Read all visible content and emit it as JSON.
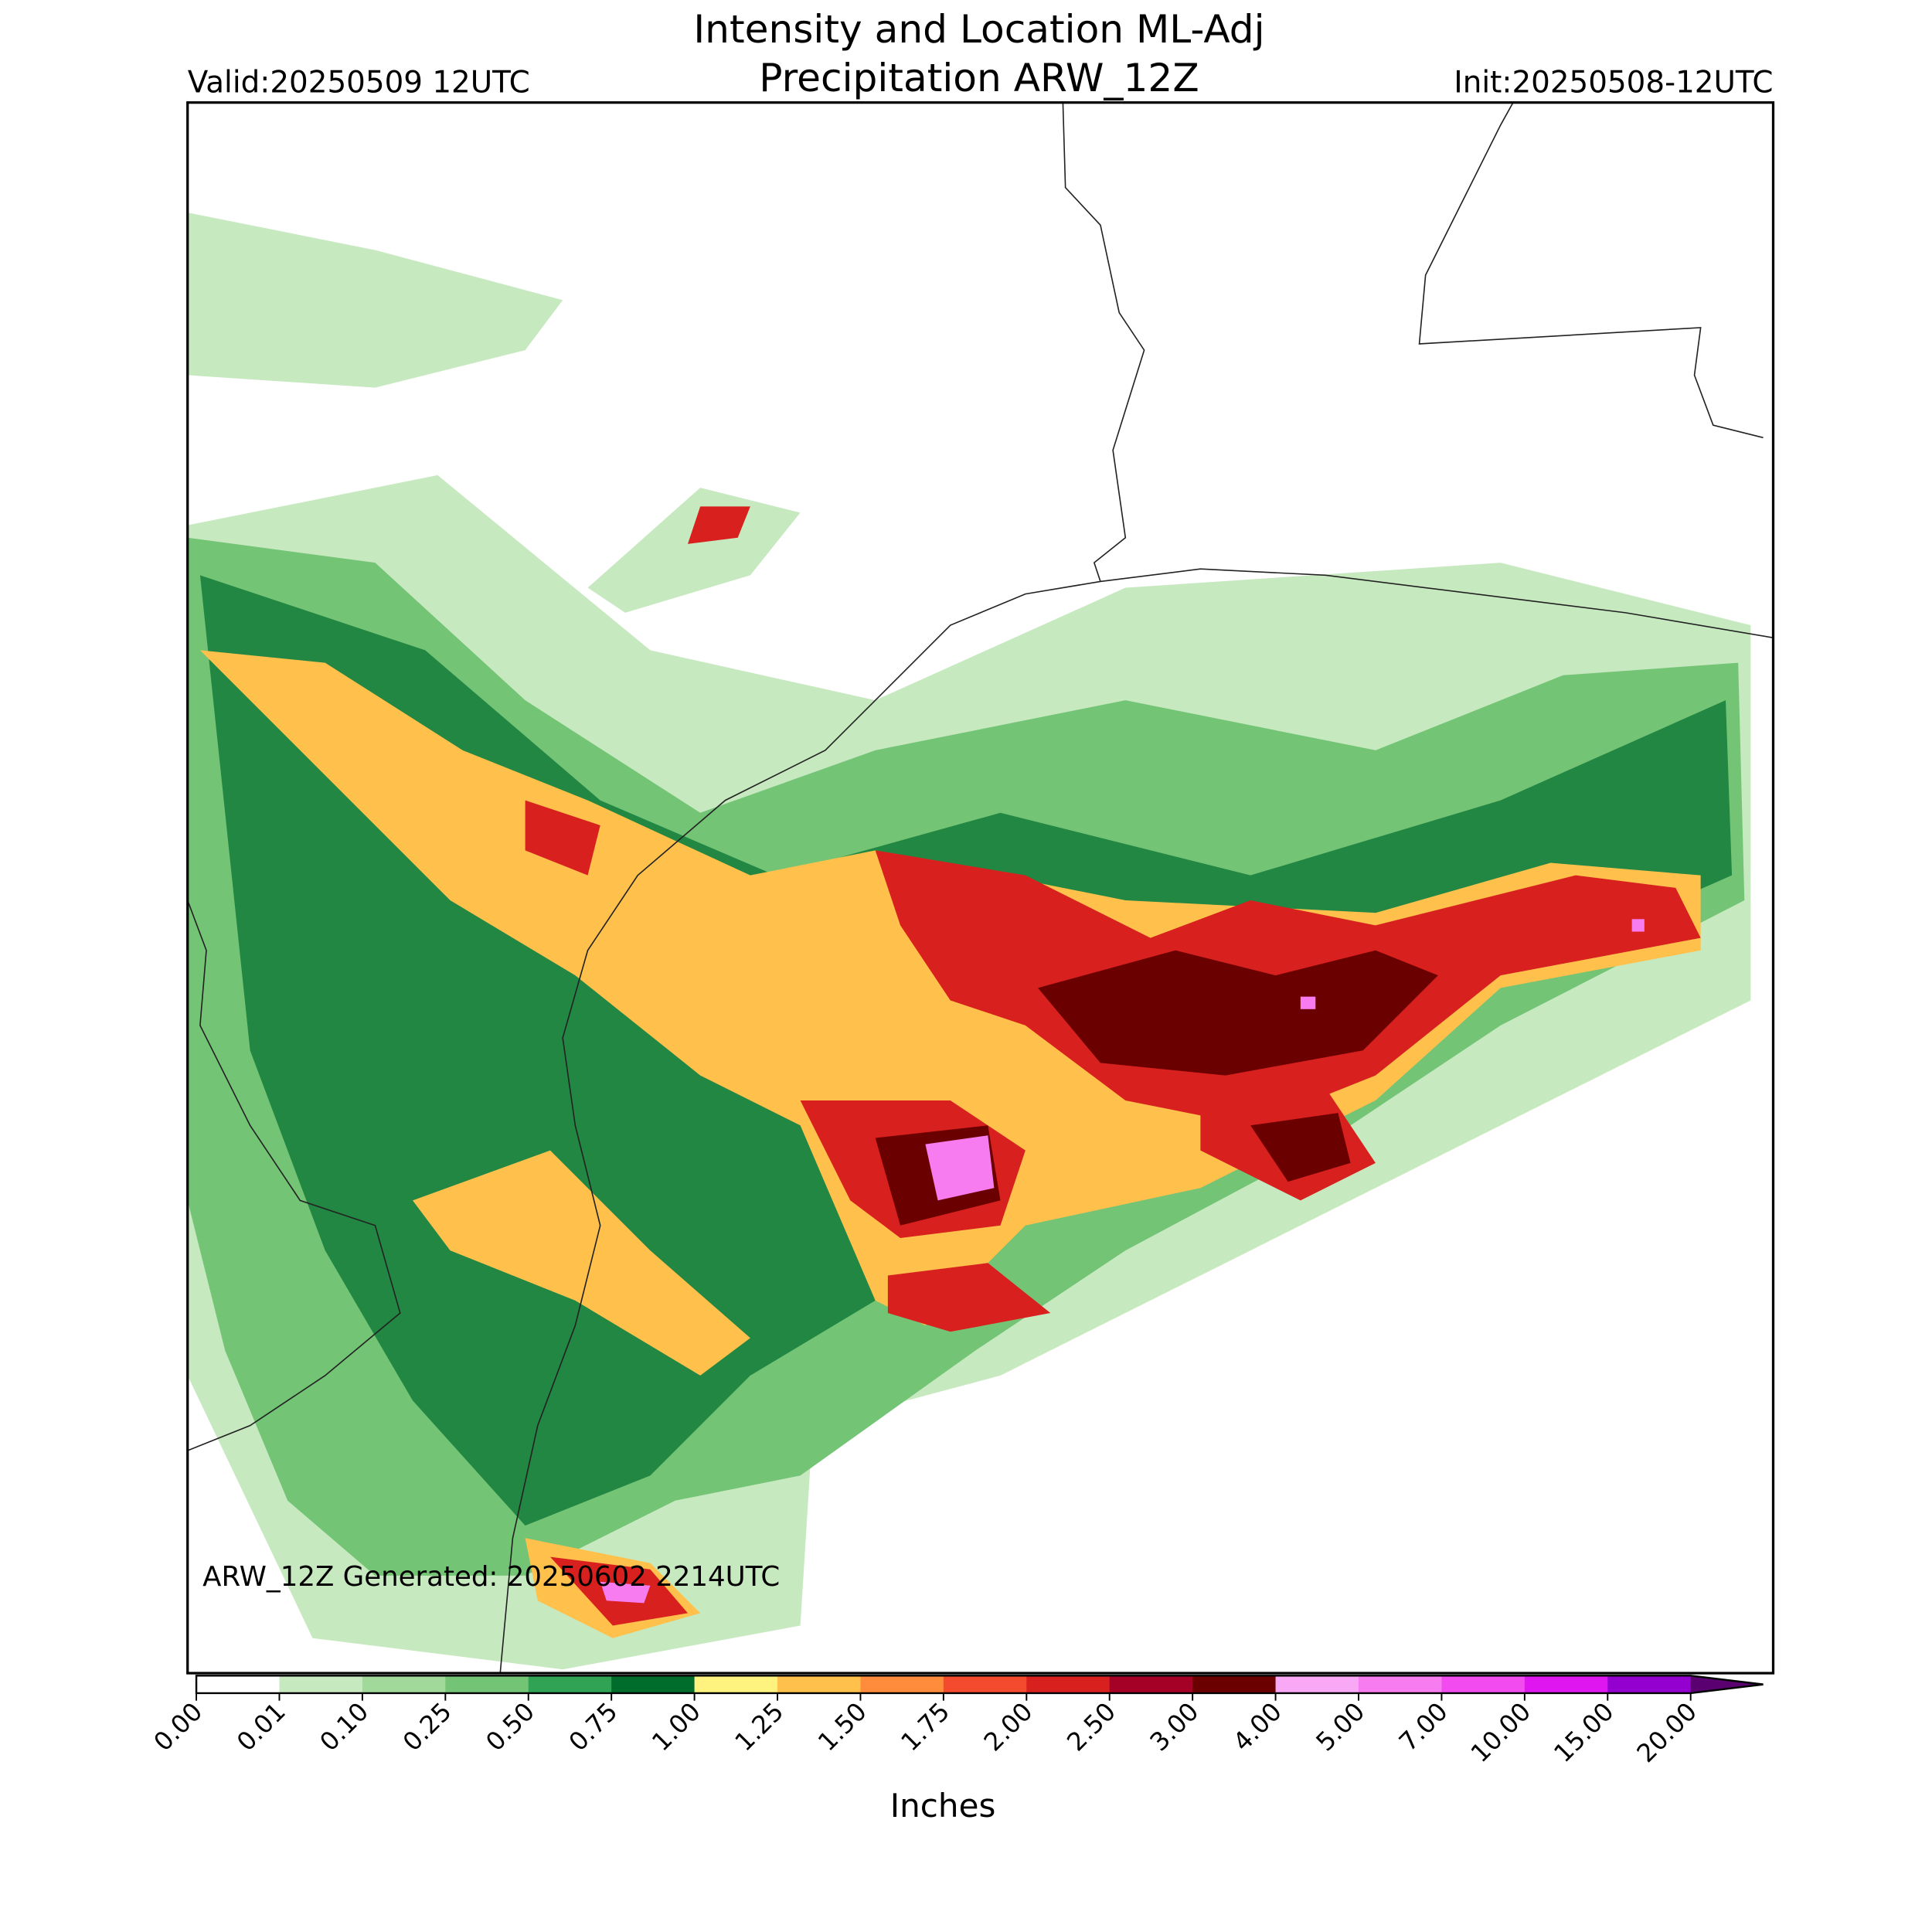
{
  "header": {
    "title_line1": "Intensity and Location ML-Adj",
    "title_line2": "Precipitation ARW_12Z",
    "valid": "Valid:20250509 12UTC",
    "init": "Init:20250508-12UTC"
  },
  "annotation": "ARW_12Z Generated: 20250602 2214UTC",
  "colorbar": {
    "label": "Inches",
    "ticks": [
      {
        "value": 0,
        "label": "0.00"
      },
      {
        "value": 0.01,
        "label": "0.01"
      },
      {
        "value": 0.1,
        "label": "0.10"
      },
      {
        "value": 0.25,
        "label": "0.25"
      },
      {
        "value": 0.5,
        "label": "0.50"
      },
      {
        "value": 0.75,
        "label": "0.75"
      },
      {
        "value": 1,
        "label": "1.00"
      },
      {
        "value": 1.25,
        "label": "1.25"
      },
      {
        "value": 1.5,
        "label": "1.50"
      },
      {
        "value": 1.75,
        "label": "1.75"
      },
      {
        "value": 2,
        "label": "2.00"
      },
      {
        "value": 2.5,
        "label": "2.50"
      },
      {
        "value": 3,
        "label": "3.00"
      },
      {
        "value": 4,
        "label": "4.00"
      },
      {
        "value": 5,
        "label": "5.00"
      },
      {
        "value": 7,
        "label": "7.00"
      },
      {
        "value": 10,
        "label": "10.00"
      },
      {
        "value": 15,
        "label": "15.00"
      },
      {
        "value": 20,
        "label": "20.00"
      }
    ],
    "colors": [
      "#ffffff",
      "#c7e9c0",
      "#a1d99b",
      "#74c476",
      "#31a354",
      "#006d2c",
      "#fff380",
      "#ffc04c",
      "#ff8c3c",
      "#f44a2e",
      "#d8201e",
      "#a50026",
      "#6b0000",
      "#f9a8f5",
      "#f77cf0",
      "#f24cf0",
      "#e016f0",
      "#9400d0"
    ],
    "extend_color": "#5a0070"
  }
}
